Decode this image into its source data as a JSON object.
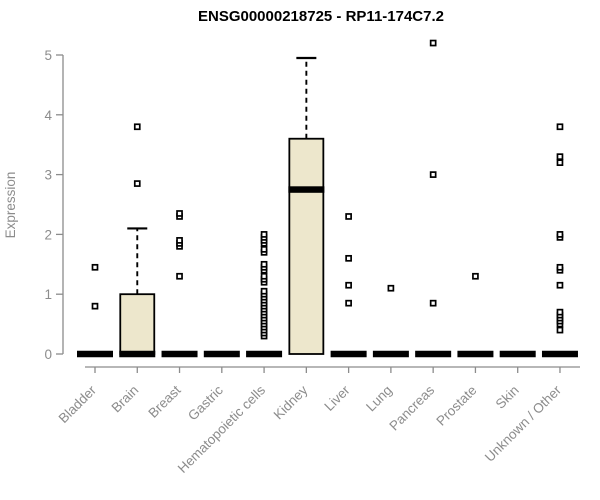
{
  "chart_data": {
    "type": "boxplot",
    "title": "ENSG00000218725 - RP11-174C7.2",
    "xlabel": "",
    "ylabel": "Expression",
    "ylim": [
      0,
      5
    ],
    "yticks": [
      0,
      1,
      2,
      3,
      4,
      5
    ],
    "grid": false,
    "legend": "none",
    "colors": {
      "box_fill": "#EDE7CC",
      "box_border": "#000000",
      "median": "#000000",
      "whisker": "#000000",
      "axis": "#8C8C8C",
      "tick_label": "#8C8C8C",
      "title": "#000000",
      "background": "#FFFFFF"
    },
    "categories": [
      "Bladder",
      "Brain",
      "Breast",
      "Gastric",
      "Hematopoietic cells",
      "Kidney",
      "Liver",
      "Lung",
      "Pancreas",
      "Prostate",
      "Skin",
      "Unknown / Other"
    ],
    "series": [
      {
        "category": "Bladder",
        "q1": 0,
        "median": 0,
        "q3": 0,
        "whisker_low": 0,
        "whisker_high": 0,
        "outliers": [
          0.8,
          1.45
        ]
      },
      {
        "category": "Brain",
        "q1": 0,
        "median": 0,
        "q3": 1.0,
        "whisker_low": 0,
        "whisker_high": 2.1,
        "outliers": [
          2.85,
          3.8
        ]
      },
      {
        "category": "Breast",
        "q1": 0,
        "median": 0,
        "q3": 0,
        "whisker_low": 0,
        "whisker_high": 0,
        "outliers": [
          1.3,
          1.8,
          1.85,
          1.9,
          2.3,
          2.35
        ]
      },
      {
        "category": "Gastric",
        "q1": 0,
        "median": 0,
        "q3": 0,
        "whisker_low": 0,
        "whisker_high": 0,
        "outliers": []
      },
      {
        "category": "Hematopoietic cells",
        "q1": 0,
        "median": 0,
        "q3": 0,
        "whisker_low": 0,
        "whisker_high": 0,
        "outliers": [
          0.3,
          0.35,
          0.4,
          0.45,
          0.5,
          0.55,
          0.6,
          0.65,
          0.7,
          0.75,
          0.8,
          0.85,
          0.9,
          0.95,
          1.0,
          1.05,
          1.2,
          1.25,
          1.3,
          1.4,
          1.45,
          1.5,
          1.7,
          1.75,
          1.85,
          1.9,
          1.95,
          2.0
        ]
      },
      {
        "category": "Kidney",
        "q1": 0,
        "median": 2.75,
        "q3": 3.6,
        "whisker_low": 0,
        "whisker_high": 4.95,
        "outliers": []
      },
      {
        "category": "Liver",
        "q1": 0,
        "median": 0,
        "q3": 0,
        "whisker_low": 0,
        "whisker_high": 0,
        "outliers": [
          0.85,
          1.15,
          1.6,
          2.3
        ]
      },
      {
        "category": "Lung",
        "q1": 0,
        "median": 0,
        "q3": 0,
        "whisker_low": 0,
        "whisker_high": 0,
        "outliers": [
          1.1
        ]
      },
      {
        "category": "Pancreas",
        "q1": 0,
        "median": 0,
        "q3": 0,
        "whisker_low": 0,
        "whisker_high": 0,
        "outliers": [
          0.85,
          3.0,
          5.2
        ]
      },
      {
        "category": "Prostate",
        "q1": 0,
        "median": 0,
        "q3": 0,
        "whisker_low": 0,
        "whisker_high": 0,
        "outliers": [
          1.3
        ]
      },
      {
        "category": "Skin",
        "q1": 0,
        "median": 0,
        "q3": 0,
        "whisker_low": 0,
        "whisker_high": 0,
        "outliers": []
      },
      {
        "category": "Unknown / Other",
        "q1": 0,
        "median": 0,
        "q3": 0,
        "whisker_low": 0,
        "whisker_high": 0,
        "outliers": [
          0.4,
          0.5,
          0.55,
          0.6,
          0.65,
          0.7,
          1.15,
          1.4,
          1.45,
          1.95,
          2.0,
          3.2,
          3.3,
          3.8
        ]
      }
    ]
  }
}
